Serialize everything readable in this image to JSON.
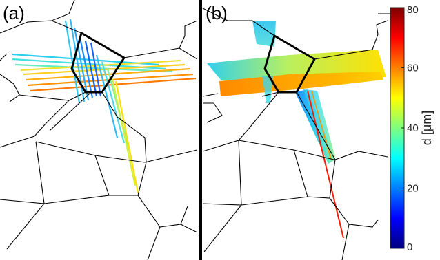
{
  "panels": [
    {
      "label": "(a)"
    },
    {
      "label": "(b)"
    }
  ],
  "colorbar": {
    "title": "d [μm]",
    "ticks": [
      "0",
      "20",
      "40",
      "60",
      "80"
    ],
    "min": 0,
    "max": 80,
    "colormap": "jet"
  },
  "colors": {
    "divider": "#000000",
    "grain_boundary": "#000000"
  }
}
